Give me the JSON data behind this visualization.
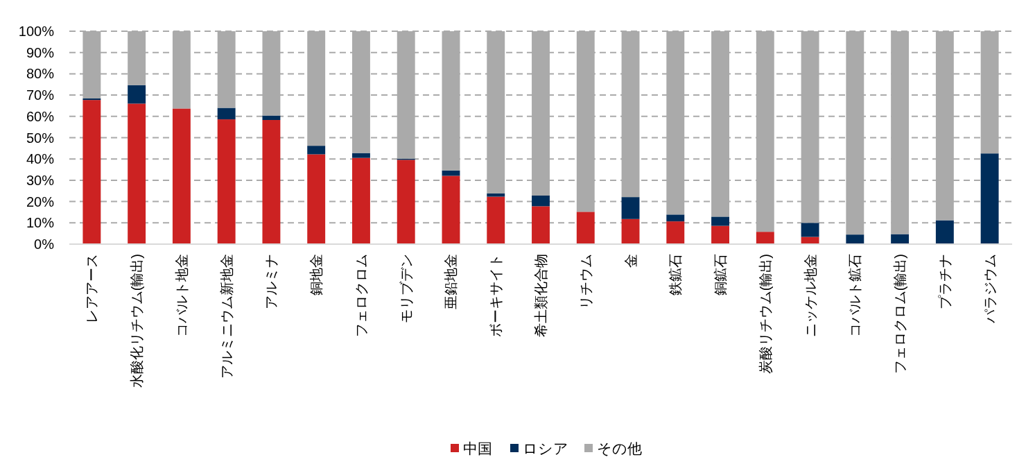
{
  "chart_data": {
    "type": "bar",
    "stacked": true,
    "categories": [
      "レアアース",
      "水酸化リチウム(輸出)",
      "コバルト地金",
      "アルミニウム新地金",
      "アルミナ",
      "銅地金",
      "フェロクロム",
      "モリブデン",
      "亜鉛地金",
      "ボーキサイト",
      "希土類化合物",
      "リチウム",
      "金",
      "鉄鉱石",
      "銅鉱石",
      "炭酸リチウム(輸出)",
      "ニッケル地金",
      "コバルト鉱石",
      "フェロクロム(輸出)",
      "プラチナ",
      "パラジウム"
    ],
    "series": [
      {
        "name": "中国",
        "color": "#cc2222",
        "values": [
          67.7,
          66.0,
          63.7,
          58.6,
          58.3,
          42.2,
          40.5,
          39.6,
          32.1,
          22.3,
          17.8,
          15.2,
          11.8,
          10.7,
          8.6,
          5.8,
          3.4,
          0,
          0,
          0,
          0
        ]
      },
      {
        "name": "ロシア",
        "color": "#002d5a",
        "values": [
          0.7,
          8.7,
          0,
          5.4,
          2.1,
          4.0,
          2.3,
          0.5,
          2.5,
          1.5,
          5.0,
          0,
          10.3,
          3.2,
          4.3,
          0,
          6.6,
          4.5,
          4.7,
          11.2,
          42.6
        ]
      },
      {
        "name": "その他",
        "color": "#aaaaaa",
        "values": [
          31.6,
          25.3,
          36.3,
          36.0,
          39.6,
          53.8,
          57.2,
          59.9,
          65.4,
          76.2,
          77.2,
          84.8,
          77.9,
          86.1,
          87.1,
          94.2,
          90.0,
          95.5,
          95.3,
          88.8,
          57.4
        ]
      }
    ],
    "ylim": [
      0,
      100
    ],
    "yticks": [
      {
        "value": 0,
        "label": "0%"
      },
      {
        "value": 10,
        "label": "10%"
      },
      {
        "value": 20,
        "label": "20%"
      },
      {
        "value": 30,
        "label": "30%"
      },
      {
        "value": 40,
        "label": "40%"
      },
      {
        "value": 50,
        "label": "50%"
      },
      {
        "value": 60,
        "label": "60%"
      },
      {
        "value": 70,
        "label": "70%"
      },
      {
        "value": 80,
        "label": "80%"
      },
      {
        "value": 90,
        "label": "90%"
      },
      {
        "value": 100,
        "label": "100%"
      }
    ],
    "grid": "y",
    "legend": "bottom"
  }
}
